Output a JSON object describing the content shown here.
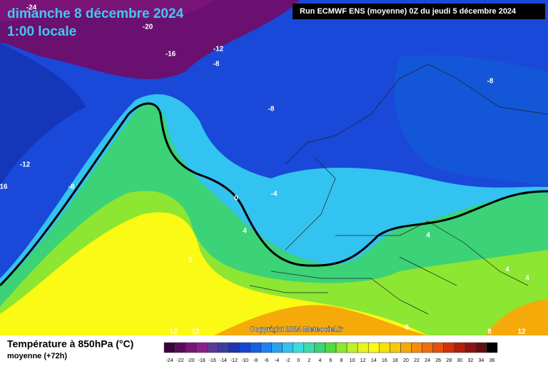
{
  "header": {
    "date": "dimanche 8 décembre 2024",
    "time": "1:00 locale",
    "run": "Run ECMWF ENS (moyenne) 0Z du jeudi 5 décembre 2024",
    "copyright": "Copyright 2024 Meteociel.fr"
  },
  "footer": {
    "title": "Température à 850hPa (°C)",
    "subtitle": "moyenne  (+72h)"
  },
  "contour_labels": [
    "-24",
    "-20",
    "-16",
    "-12",
    "-8",
    "-8",
    "-8",
    "-12",
    "16",
    "-8",
    "0",
    "-4",
    "4",
    "8",
    "4",
    "4",
    "4",
    "12",
    "12",
    "8",
    "8",
    "12"
  ],
  "legend": {
    "ticks": [
      -24,
      -22,
      -20,
      -18,
      -16,
      -14,
      -12,
      -10,
      -8,
      -6,
      -4,
      -2,
      0,
      2,
      4,
      6,
      8,
      10,
      12,
      14,
      16,
      18,
      20,
      22,
      24,
      26,
      28,
      30,
      32,
      34,
      36
    ],
    "colors": [
      "#3a0040",
      "#5a0a5a",
      "#7a1478",
      "#8c1e8c",
      "#5a3a96",
      "#3c3ca0",
      "#1e32b4",
      "#1446d2",
      "#1460e6",
      "#1e82f0",
      "#28a0f0",
      "#32c3f0",
      "#3cdcdc",
      "#3cdcaa",
      "#3cd278",
      "#50dc3c",
      "#8ce632",
      "#bef028",
      "#e6f51e",
      "#fafa14",
      "#f5e10a",
      "#f5c80a",
      "#f5aa0a",
      "#f58c0a",
      "#f06e0a",
      "#e6500a",
      "#d2320a",
      "#b41e0a",
      "#8c1414",
      "#641010",
      "#000000"
    ]
  }
}
